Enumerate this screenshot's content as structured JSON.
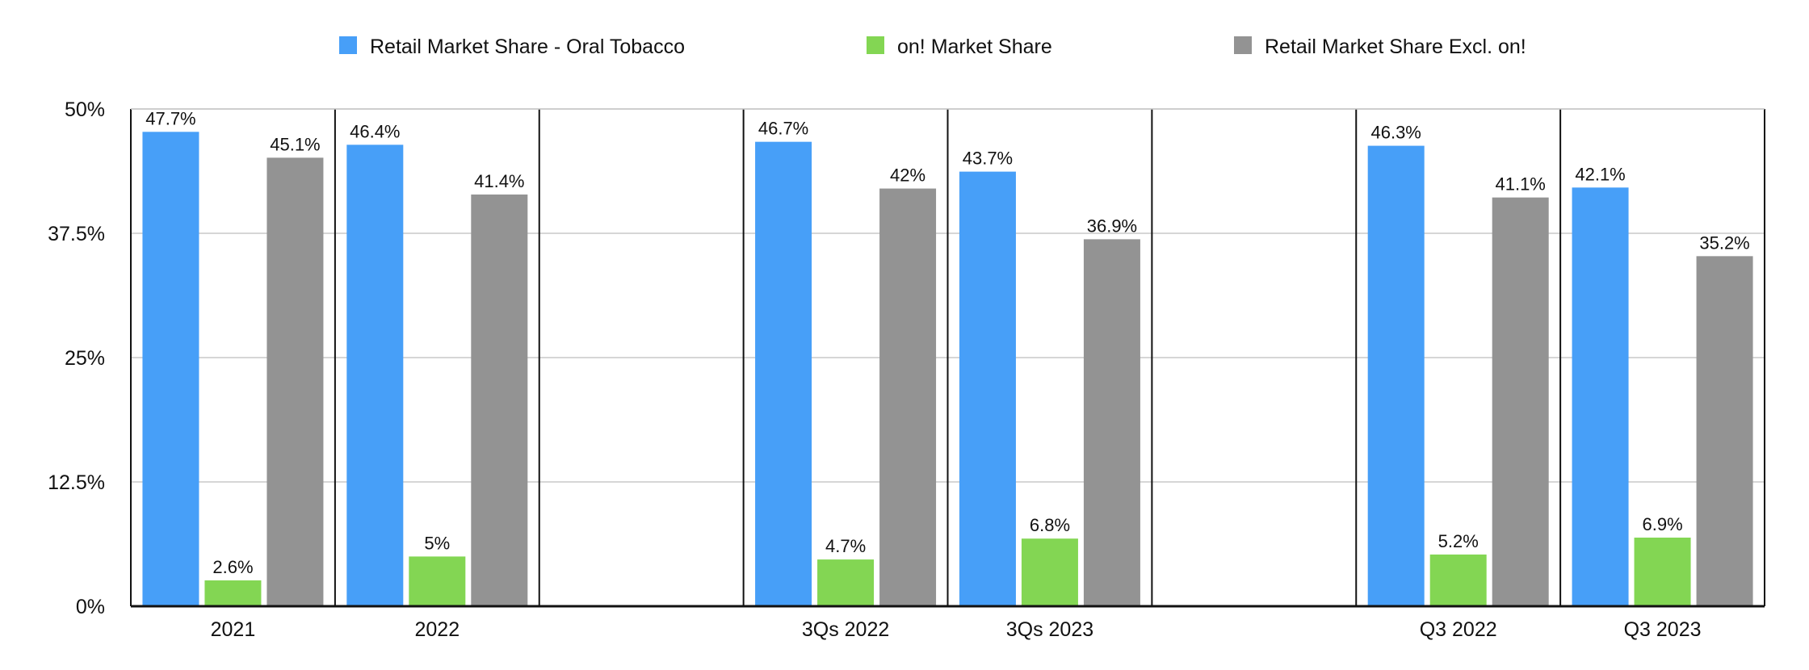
{
  "chart_data": {
    "type": "bar",
    "categories": [
      "2021",
      "2022",
      "",
      "3Qs 2022",
      "3Qs 2023",
      "",
      "Q3 2022",
      "Q3 2023"
    ],
    "series": [
      {
        "name": "Retail Market Share - Oral Tobacco",
        "color": "#479ff8",
        "values": [
          47.7,
          46.4,
          null,
          46.7,
          43.7,
          null,
          46.3,
          42.1
        ],
        "labels": [
          "47.7%",
          "46.4%",
          "",
          "46.7%",
          "43.7%",
          "",
          "46.3%",
          "42.1%"
        ]
      },
      {
        "name": "on! Market Share",
        "color": "#83d653",
        "values": [
          2.6,
          5,
          null,
          4.7,
          6.8,
          null,
          5.2,
          6.9
        ],
        "labels": [
          "2.6%",
          "5%",
          "",
          "4.7%",
          "6.8%",
          "",
          "5.2%",
          "6.9%"
        ]
      },
      {
        "name": "Retail Market Share Excl. on!",
        "color": "#939393",
        "values": [
          45.1,
          41.4,
          null,
          42,
          36.9,
          null,
          41.1,
          35.2
        ],
        "labels": [
          "45.1%",
          "41.4%",
          "",
          "42%",
          "36.9%",
          "",
          "41.1%",
          "35.2%"
        ]
      }
    ],
    "yticks": [
      0,
      12.5,
      25,
      37.5,
      50
    ],
    "ytick_labels": [
      "0%",
      "12.5%",
      "25%",
      "37.5%",
      "50%"
    ],
    "ylim": [
      0,
      50
    ],
    "grid": true,
    "legend_position": "top",
    "title": "",
    "xlabel": "",
    "ylabel": ""
  }
}
